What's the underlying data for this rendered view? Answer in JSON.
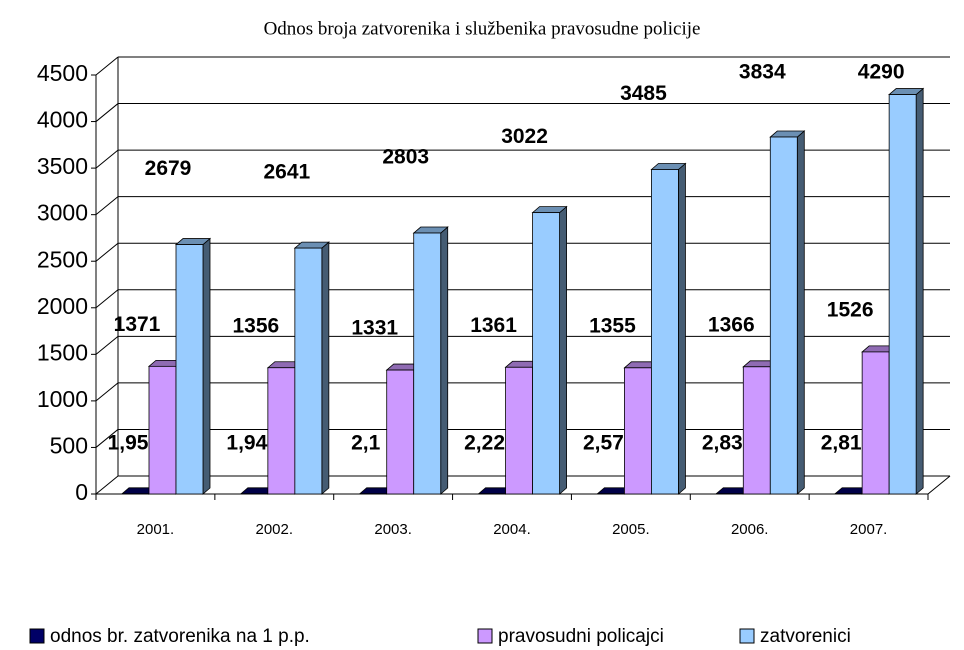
{
  "chart_data": {
    "type": "bar3d",
    "title": "Odnos broja zatvorenika i službenika pravosudne policije",
    "categories": [
      "2001.",
      "2002.",
      "2003.",
      "2004.",
      "2005.",
      "2006.",
      "2007."
    ],
    "series": [
      {
        "name": "odnos br. zatvorenika na 1 p.p.",
        "color": "#000066",
        "values": [
          1.95,
          1.94,
          2.1,
          2.22,
          2.57,
          2.83,
          2.81
        ],
        "value_labels": [
          "1,95",
          "1,94",
          "2,1",
          "2,22",
          "2,57",
          "2,83",
          "2,81"
        ]
      },
      {
        "name": "pravosudni policajci",
        "color": "#cc99ff",
        "values": [
          1371,
          1356,
          1331,
          1361,
          1355,
          1366,
          1526
        ]
      },
      {
        "name": "zatvorenici",
        "color": "#99ccff",
        "values": [
          2679,
          2641,
          2803,
          3022,
          3485,
          3834,
          4290
        ]
      }
    ],
    "ylim": [
      0,
      4500
    ],
    "yticks": [
      0,
      500,
      1000,
      1500,
      2000,
      2500,
      3000,
      3500,
      4000,
      4500
    ],
    "grid": true,
    "legend": "bottom"
  }
}
